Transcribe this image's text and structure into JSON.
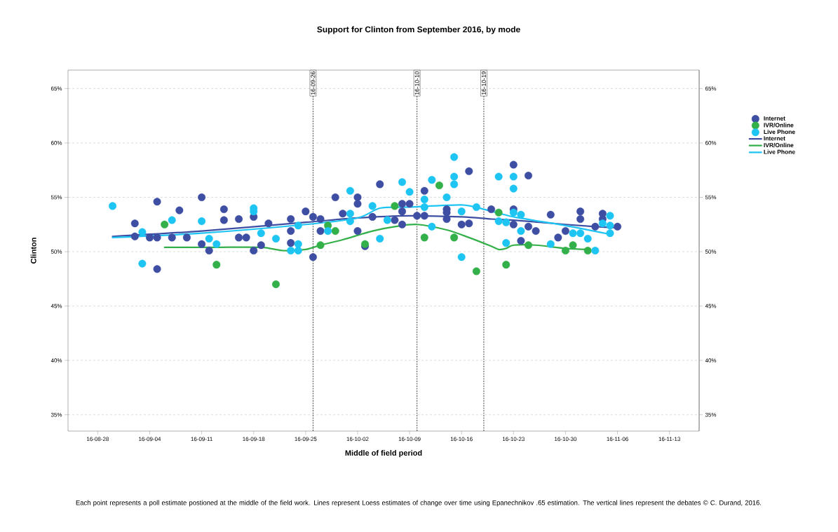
{
  "chart_data": {
    "type": "scatter",
    "title": "Support for Clinton from September 2016, by mode",
    "xlabel": "Middle of field period",
    "ylabel": "Clinton",
    "annotations": [
      "Each point represents a poll estimate postioned at the middle of the field work. Lines represent Loess estimates of change over time using Epanechnikov .65 estimation. The vertical lines represent the debates © C. Durand, 2016."
    ],
    "xlim": [
      "2016-08-24",
      "2016-11-17"
    ],
    "xticks": [
      {
        "value": "2016-08-28",
        "label": "16-08-28"
      },
      {
        "value": "2016-09-04",
        "label": "16-09-04"
      },
      {
        "value": "2016-09-11",
        "label": "16-09-11"
      },
      {
        "value": "2016-09-18",
        "label": "16-09-18"
      },
      {
        "value": "2016-09-25",
        "label": "16-09-25"
      },
      {
        "value": "2016-10-02",
        "label": "16-10-02"
      },
      {
        "value": "2016-10-09",
        "label": "16-10-09"
      },
      {
        "value": "2016-10-16",
        "label": "16-10-16"
      },
      {
        "value": "2016-10-23",
        "label": "16-10-23"
      },
      {
        "value": "2016-10-30",
        "label": "16-10-30"
      },
      {
        "value": "2016-11-06",
        "label": "16-11-06"
      },
      {
        "value": "2016-11-13",
        "label": "16-11-13"
      }
    ],
    "ylim": [
      33.5,
      66.7
    ],
    "yticks": [
      {
        "value": 35,
        "label": "35%"
      },
      {
        "value": 40,
        "label": "40%"
      },
      {
        "value": 45,
        "label": "45%"
      },
      {
        "value": 50,
        "label": "50%"
      },
      {
        "value": 55,
        "label": "55%"
      },
      {
        "value": 60,
        "label": "60%"
      },
      {
        "value": 65,
        "label": "65%"
      }
    ],
    "y2lim": [
      33.5,
      66.7
    ],
    "y2ticks": [
      {
        "value": 35,
        "label": "35%"
      },
      {
        "value": 40,
        "label": "40%"
      },
      {
        "value": 45,
        "label": "45%"
      },
      {
        "value": 50,
        "label": "50%"
      },
      {
        "value": 55,
        "label": "55%"
      },
      {
        "value": 60,
        "label": "60%"
      },
      {
        "value": 65,
        "label": "65%"
      }
    ],
    "grid": "y",
    "marker": "circle",
    "legend": "right",
    "ref_lines": [
      {
        "axis": "x",
        "value": "2016-09-26",
        "label": "16-09-26"
      },
      {
        "axis": "x",
        "value": "2016-10-10",
        "label": "16-10-10"
      },
      {
        "axis": "x",
        "value": "2016-10-19",
        "label": "16-10-19"
      }
    ],
    "series": [
      {
        "name": "Internet",
        "color": "#3e4fa3",
        "x": [
          "2016-09-02",
          "2016-09-02",
          "2016-09-04",
          "2016-09-05",
          "2016-09-05",
          "2016-09-05",
          "2016-09-07",
          "2016-09-08",
          "2016-09-09",
          "2016-09-11",
          "2016-09-11",
          "2016-09-12",
          "2016-09-14",
          "2016-09-14",
          "2016-09-16",
          "2016-09-16",
          "2016-09-17",
          "2016-09-18",
          "2016-09-18",
          "2016-09-19",
          "2016-09-20",
          "2016-09-23",
          "2016-09-23",
          "2016-09-23",
          "2016-09-25",
          "2016-09-26",
          "2016-09-26",
          "2016-09-27",
          "2016-09-27",
          "2016-09-29",
          "2016-09-30",
          "2016-10-02",
          "2016-10-02",
          "2016-10-02",
          "2016-10-03",
          "2016-10-04",
          "2016-10-05",
          "2016-10-07",
          "2016-10-08",
          "2016-10-08",
          "2016-10-08",
          "2016-10-09",
          "2016-10-10",
          "2016-10-11",
          "2016-10-11",
          "2016-10-14",
          "2016-10-14",
          "2016-10-14",
          "2016-10-16",
          "2016-10-17",
          "2016-10-17",
          "2016-10-20",
          "2016-10-23",
          "2016-10-23",
          "2016-10-23",
          "2016-10-24",
          "2016-10-25",
          "2016-10-25",
          "2016-10-26",
          "2016-10-28",
          "2016-10-29",
          "2016-10-30",
          "2016-11-01",
          "2016-11-01",
          "2016-11-03",
          "2016-11-04",
          "2016-11-04",
          "2016-11-06"
        ],
        "values": [
          52.6,
          51.4,
          51.3,
          54.6,
          51.3,
          48.4,
          51.3,
          53.8,
          51.3,
          55.0,
          50.7,
          50.1,
          53.9,
          52.9,
          53.0,
          51.3,
          51.3,
          53.2,
          50.1,
          50.6,
          52.6,
          53.0,
          51.9,
          50.8,
          53.7,
          53.2,
          49.5,
          53.0,
          51.9,
          55.0,
          53.5,
          55.0,
          54.4,
          51.9,
          50.5,
          53.2,
          56.2,
          52.9,
          54.4,
          53.7,
          52.5,
          54.4,
          53.3,
          55.6,
          53.3,
          53.9,
          53.6,
          53.0,
          52.5,
          52.6,
          57.4,
          53.9,
          58.0,
          53.9,
          52.5,
          51.0,
          57.0,
          52.3,
          51.9,
          53.4,
          51.3,
          51.9,
          53.7,
          53.0,
          52.3,
          53.5,
          53.0,
          52.3
        ]
      },
      {
        "name": "IVR/Online",
        "color": "#34b04a",
        "x": [
          "2016-09-06",
          "2016-09-13",
          "2016-09-21",
          "2016-09-27",
          "2016-09-28",
          "2016-09-29",
          "2016-10-03",
          "2016-10-07",
          "2016-10-11",
          "2016-10-13",
          "2016-10-15",
          "2016-10-18",
          "2016-10-21",
          "2016-10-22",
          "2016-10-25",
          "2016-10-30",
          "2016-10-31",
          "2016-11-02"
        ],
        "values": [
          52.5,
          48.8,
          47.0,
          50.6,
          52.4,
          51.9,
          50.7,
          54.2,
          51.3,
          56.1,
          51.3,
          48.2,
          53.6,
          48.8,
          50.6,
          50.1,
          50.6,
          50.1
        ]
      },
      {
        "name": "Live Phone",
        "color": "#1ec5f2",
        "x": [
          "2016-08-30",
          "2016-09-03",
          "2016-09-03",
          "2016-09-07",
          "2016-09-11",
          "2016-09-12",
          "2016-09-13",
          "2016-09-18",
          "2016-09-18",
          "2016-09-19",
          "2016-09-21",
          "2016-09-23",
          "2016-09-24",
          "2016-09-24",
          "2016-09-24",
          "2016-09-28",
          "2016-10-01",
          "2016-10-01",
          "2016-10-01",
          "2016-10-04",
          "2016-10-05",
          "2016-10-06",
          "2016-10-08",
          "2016-10-09",
          "2016-10-11",
          "2016-10-11",
          "2016-10-12",
          "2016-10-12",
          "2016-10-14",
          "2016-10-15",
          "2016-10-15",
          "2016-10-15",
          "2016-10-16",
          "2016-10-16",
          "2016-10-18",
          "2016-10-21",
          "2016-10-21",
          "2016-10-22",
          "2016-10-22",
          "2016-10-23",
          "2016-10-23",
          "2016-10-23",
          "2016-10-24",
          "2016-10-24",
          "2016-10-28",
          "2016-10-31",
          "2016-11-01",
          "2016-11-02",
          "2016-11-03",
          "2016-11-04",
          "2016-11-05",
          "2016-11-05",
          "2016-11-05"
        ],
        "values": [
          54.2,
          51.8,
          48.9,
          52.9,
          52.8,
          51.2,
          50.7,
          54.0,
          53.7,
          51.7,
          51.2,
          50.1,
          52.4,
          50.7,
          50.1,
          51.9,
          55.6,
          53.5,
          52.8,
          54.2,
          51.2,
          52.9,
          56.4,
          55.5,
          54.8,
          54.1,
          56.6,
          52.3,
          55.0,
          58.7,
          56.9,
          56.2,
          53.7,
          49.5,
          54.1,
          56.9,
          52.8,
          52.7,
          50.8,
          56.9,
          55.8,
          53.6,
          53.4,
          51.9,
          50.7,
          51.7,
          51.7,
          51.2,
          50.1,
          52.6,
          53.3,
          52.4,
          51.7
        ]
      },
      {
        "name": "Internet",
        "type": "line",
        "marker": "none",
        "color": "#3e4fa3",
        "x": [
          "2016-08-30",
          "2016-09-11",
          "2016-09-25",
          "2016-10-02",
          "2016-10-09",
          "2016-10-16",
          "2016-10-20",
          "2016-10-23",
          "2016-10-30",
          "2016-11-03",
          "2016-11-06"
        ],
        "values": [
          51.4,
          51.9,
          52.7,
          53.1,
          53.3,
          53.2,
          53.0,
          52.9,
          52.5,
          52.3,
          52.2
        ]
      },
      {
        "name": "IVR/Online",
        "type": "line",
        "marker": "none",
        "color": "#34b04a",
        "x": [
          "2016-09-06",
          "2016-09-13",
          "2016-09-19",
          "2016-09-22",
          "2016-09-25",
          "2016-09-27",
          "2016-09-30",
          "2016-10-04",
          "2016-10-07",
          "2016-10-10",
          "2016-10-14",
          "2016-10-17",
          "2016-10-20",
          "2016-10-21",
          "2016-10-22",
          "2016-10-23",
          "2016-10-26",
          "2016-10-30",
          "2016-11-02"
        ],
        "values": [
          50.4,
          50.4,
          50.4,
          50.1,
          50.2,
          50.6,
          51.1,
          51.9,
          52.3,
          52.5,
          52.0,
          51.3,
          50.5,
          50.2,
          50.3,
          50.6,
          50.6,
          50.3,
          50.2
        ]
      },
      {
        "name": "Live Phone",
        "type": "line",
        "marker": "none",
        "color": "#1ec5f2",
        "x": [
          "2016-08-30",
          "2016-09-11",
          "2016-09-25",
          "2016-10-02",
          "2016-10-05",
          "2016-10-09",
          "2016-10-16",
          "2016-10-19",
          "2016-10-23",
          "2016-10-30",
          "2016-11-05"
        ],
        "values": [
          51.3,
          51.7,
          52.5,
          53.1,
          54.0,
          54.1,
          54.3,
          53.9,
          53.2,
          52.4,
          51.6
        ]
      }
    ]
  }
}
